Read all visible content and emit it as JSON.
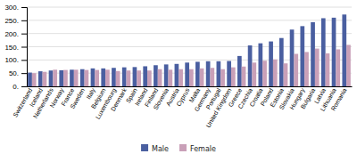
{
  "chart_data": {
    "type": "bar",
    "categories": [
      "Switzerland",
      "Iceland",
      "Netherlands",
      "Norway",
      "France",
      "Sweden",
      "Italy",
      "Belgium",
      "Luxembourg",
      "Denmark",
      "Spain",
      "Ireland",
      "Finland",
      "Slovenia",
      "Austria",
      "Cyprus",
      "Malta",
      "Germany",
      "Portugal",
      "United Kingdom",
      "Greece",
      "Czechia",
      "Croatia",
      "Poland",
      "Estonia",
      "Slovakia",
      "Hungary",
      "Bulgaria",
      "Latvia",
      "Lithuania",
      "Romania"
    ],
    "series": [
      {
        "name": "Male",
        "color": "#4a5fa0",
        "values": [
          52,
          57,
          60,
          61,
          63,
          65,
          68,
          68,
          70,
          72,
          73,
          76,
          80,
          83,
          85,
          90,
          93,
          95,
          95,
          96,
          115,
          155,
          163,
          170,
          183,
          215,
          228,
          243,
          258,
          260,
          272
        ]
      },
      {
        "name": "Female",
        "color": "#c9a0b8",
        "values": [
          50,
          55,
          63,
          62,
          63,
          62,
          62,
          63,
          58,
          60,
          60,
          60,
          65,
          63,
          65,
          65,
          68,
          70,
          65,
          72,
          75,
          90,
          97,
          102,
          87,
          123,
          130,
          143,
          125,
          140,
          157
        ]
      }
    ],
    "ylim": [
      0,
      300
    ],
    "yticks": [
      {
        "value": 0,
        "label": "0."
      },
      {
        "value": 50,
        "label": "50."
      },
      {
        "value": 100,
        "label": "100."
      },
      {
        "value": 150,
        "label": "150."
      },
      {
        "value": 200,
        "label": "200."
      },
      {
        "value": 250,
        "label": "250."
      },
      {
        "value": 300,
        "label": "300."
      }
    ],
    "grid": true,
    "legend": "bottom"
  }
}
